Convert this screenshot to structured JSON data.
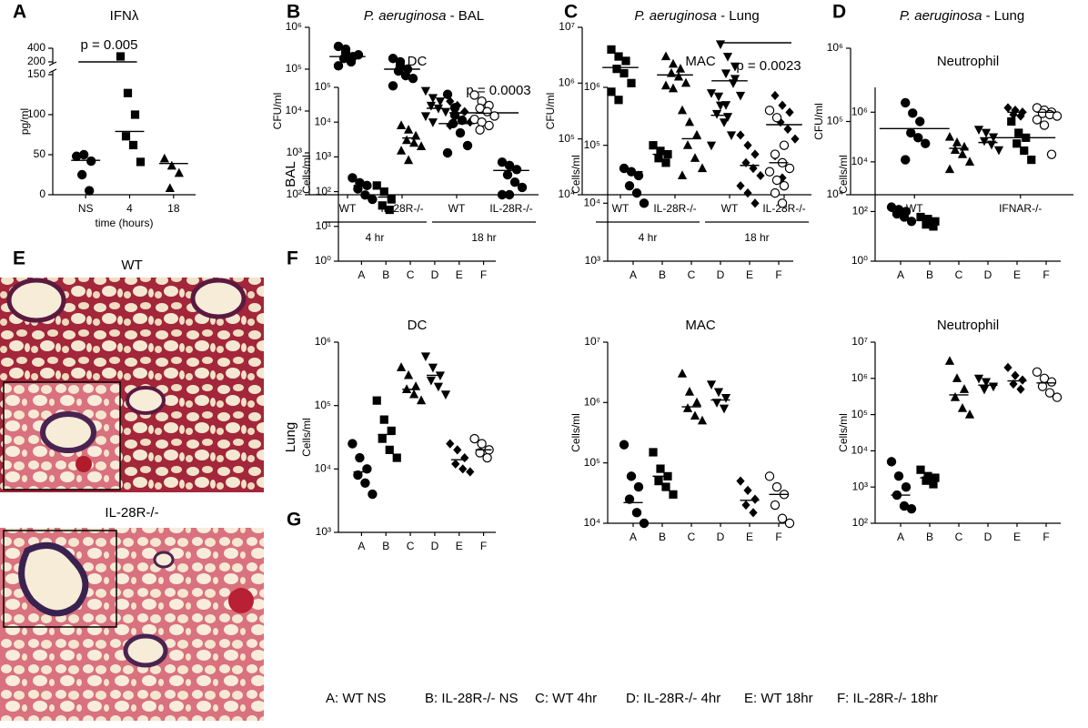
{
  "chart_data": [
    {
      "type": "dot",
      "panel": "A",
      "title": "IFNλ",
      "ylabel": "pg/ml",
      "xlabel": "time (hours)",
      "log": false,
      "categories": [
        "NS",
        "4",
        "18"
      ],
      "markers": [
        "circle",
        "square",
        "triangle"
      ],
      "ylim": [
        0,
        150
      ],
      "yticks": [
        0,
        50,
        100,
        150
      ],
      "ylim_upper": [
        200,
        400
      ],
      "yticks_upper": [
        200,
        400
      ],
      "points": [
        [
          48,
          50,
          42,
          25,
          5
        ],
        [
          280,
          127,
          100,
          73,
          62,
          41
        ],
        [
          45,
          36,
          27,
          8
        ]
      ],
      "medians": [
        43,
        79,
        39
      ],
      "annotations": [
        "p = 0.005"
      ]
    },
    {
      "type": "dot",
      "panel": "B",
      "title_species": "P. aeruginosa",
      "title": "- BAL",
      "ylabel": "CFU/ml",
      "log": true,
      "categories": [
        "WT",
        "IL-28R-/-",
        "WT",
        "IL-28R-/-"
      ],
      "groups": [
        "4 hr",
        "18 hr"
      ],
      "markers": [
        "circle",
        "circle",
        "circle",
        "circle"
      ],
      "ylim": [
        100,
        1000000
      ],
      "yticks": [
        {
          "value": 100,
          "label": "10²"
        },
        {
          "value": 1000,
          "label": "10³"
        },
        {
          "value": 10000,
          "label": "10⁴"
        },
        {
          "value": 100000,
          "label": "10⁵"
        },
        {
          "value": 1000000,
          "label": "10⁶"
        }
      ],
      "points": [
        [
          350000,
          250000,
          200000,
          180000,
          150000,
          220000,
          120000,
          300000
        ],
        [
          180000,
          150000,
          100000,
          90000,
          70000,
          60000,
          40000,
          120000
        ],
        [
          25000,
          12000,
          6000,
          5000,
          3000,
          1500,
          1000,
          8000
        ],
        [
          600,
          500,
          400,
          300,
          200,
          150,
          100,
          100
        ]
      ],
      "medians": [
        200000,
        100000,
        5000,
        380
      ],
      "annotations": [
        "p = 0.0003"
      ]
    },
    {
      "type": "dot",
      "panel": "C",
      "title_species": "P. aeruginosa",
      "title": "- Lung",
      "ylabel": "CFU/ml",
      "log": true,
      "categories": [
        "WT",
        "IL-28R-/-",
        "WT",
        "IL-28R-/-"
      ],
      "groups": [
        "4 hr",
        "18 hr"
      ],
      "markers": [
        "square",
        "triangle",
        "triangle-down",
        "diamond"
      ],
      "ylim": [
        10000,
        10000000
      ],
      "yticks": [
        {
          "value": 10000,
          "label": "10⁴"
        },
        {
          "value": 100000,
          "label": "10⁵"
        },
        {
          "value": 1000000,
          "label": "10⁶"
        },
        {
          "value": 10000000,
          "label": "10⁷"
        }
      ],
      "points": [
        [
          4000000,
          3000000,
          2500000,
          1800000,
          1500000,
          1000000,
          700000,
          500000
        ],
        [
          3000000,
          2200000,
          1800000,
          1500000,
          1300000,
          1000000,
          900000,
          800000
        ],
        [
          5000000,
          3000000,
          2000000,
          1500000,
          1000000,
          600000,
          400000,
          250000,
          1200000
        ],
        [
          600000,
          400000,
          300000,
          200000,
          150000,
          100000,
          50000,
          20000
        ]
      ],
      "medians": [
        1900000,
        1400000,
        1100000,
        180000
      ],
      "annotations": [
        "p = 0.0023"
      ]
    },
    {
      "type": "dot",
      "panel": "D",
      "title_species": "P. aeruginosa",
      "title": "- Lung",
      "ylabel": "CFU/ml",
      "log": true,
      "categories": [
        "WT",
        "IFNAR-/-"
      ],
      "markers": [
        "circle",
        "square"
      ],
      "ylim": [
        10000,
        1000000
      ],
      "yticks": [
        {
          "value": 10000,
          "label": "10⁴"
        },
        {
          "value": 100000,
          "label": "10⁵"
        },
        {
          "value": 1000000,
          "label": "10⁶"
        }
      ],
      "points": [
        [
          180000,
          130000,
          100000,
          70000,
          60000,
          50000,
          30000
        ],
        [
          100000,
          70000,
          60000,
          50000,
          40000,
          30000
        ]
      ],
      "medians": [
        80000,
        60000
      ]
    },
    {
      "type": "dot",
      "panel": "F",
      "row_label": "BAL",
      "title": "DC",
      "ylabel": "Cells/ml",
      "log": true,
      "categories": [
        "A",
        "B",
        "C",
        "D",
        "E",
        "F"
      ],
      "markers": [
        "circle",
        "square",
        "triangle",
        "triangle-down",
        "diamond",
        "open-circle"
      ],
      "ylim": [
        1,
        100000
      ],
      "yticks": [
        {
          "value": 1,
          "label": "10⁰"
        },
        {
          "value": 10,
          "label": "10¹"
        },
        {
          "value": 100,
          "label": "10²"
        },
        {
          "value": 1000,
          "label": "10³"
        },
        {
          "value": 10000,
          "label": "10⁴"
        },
        {
          "value": 100000,
          "label": "10⁵"
        }
      ],
      "points": [
        [
          250,
          180,
          150,
          120,
          80,
          60
        ],
        [
          150,
          100,
          60,
          40,
          30
        ],
        [
          8000,
          6000,
          4000,
          3000,
          2500,
          2000,
          1500,
          800
        ],
        [
          80000,
          50000,
          40000,
          30000,
          25000,
          20000,
          15000,
          10000
        ],
        [
          40000,
          30000,
          20000,
          15000,
          12000,
          10000,
          8000
        ],
        [
          60000,
          40000,
          30000,
          25000,
          20000,
          15000,
          12000,
          10000,
          8000,
          6000
        ]
      ],
      "medians": [
        150,
        70,
        3500,
        25000,
        18000,
        18000
      ]
    },
    {
      "type": "dot",
      "title": "MAC",
      "ylabel": "Cells/ml",
      "log": true,
      "categories": [
        "A",
        "B",
        "C",
        "D",
        "E",
        "F"
      ],
      "markers": [
        "circle",
        "square",
        "triangle",
        "triangle-down",
        "diamond",
        "open-circle"
      ],
      "ylim": [
        1000,
        1000000
      ],
      "yticks": [
        {
          "value": 1000,
          "label": "10³"
        },
        {
          "value": 10000,
          "label": "10⁴"
        },
        {
          "value": 100000,
          "label": "10⁵"
        },
        {
          "value": 1000000,
          "label": "10⁶"
        }
      ],
      "points": [
        [
          40000,
          35000,
          30000,
          20000,
          15000,
          10000
        ],
        [
          100000,
          80000,
          70000,
          60000,
          50000
        ],
        [
          400000,
          250000,
          150000,
          100000,
          60000,
          40000,
          30000
        ],
        [
          800000,
          700000,
          500000,
          350000,
          250000,
          150000,
          100000
        ],
        [
          150000,
          100000,
          70000,
          50000,
          40000,
          30000,
          20000,
          15000,
          10000
        ],
        [
          400000,
          300000,
          100000,
          70000,
          50000,
          40000,
          35000,
          25000,
          20000,
          15000,
          10000
        ]
      ],
      "medians": [
        35000,
        70000,
        130000,
        330000,
        45000,
        50000
      ]
    },
    {
      "type": "dot",
      "title": "Neutrophil",
      "ylabel": "Cells/ml",
      "log": true,
      "categories": [
        "A",
        "B",
        "C",
        "D",
        "E",
        "F"
      ],
      "markers": [
        "circle",
        "square",
        "triangle",
        "triangle-down",
        "diamond",
        "open-circle"
      ],
      "ylim": [
        1,
        10000000
      ],
      "yticks": [
        {
          "value": 1,
          "label": "10⁰"
        },
        {
          "value": 100,
          "label": "10²"
        },
        {
          "value": 10000,
          "label": "10⁴"
        },
        {
          "value": 1000000,
          "label": "10⁶"
        }
      ],
      "points": [
        [
          150,
          120,
          100,
          80,
          60,
          40
        ],
        [
          60,
          50,
          40,
          30,
          25
        ],
        [
          100000,
          60000,
          40000,
          30000,
          20000,
          10000,
          5000
        ],
        [
          200000,
          150000,
          100000,
          70000,
          50000,
          30000
        ],
        [
          1500000,
          1200000,
          1000000,
          800000,
          700000
        ],
        [
          1500000,
          1200000,
          1000000,
          900000,
          800000,
          700000,
          500000,
          300000,
          20000
        ]
      ],
      "medians": [
        100,
        45,
        35000,
        60000,
        1000000,
        1000000
      ]
    },
    {
      "type": "dot",
      "panel": "G",
      "row_label": "Lung",
      "title": "DC",
      "ylabel": "Cells/ml",
      "log": true,
      "categories": [
        "A",
        "B",
        "C",
        "D",
        "E",
        "F"
      ],
      "markers": [
        "circle",
        "square",
        "triangle",
        "triangle-down",
        "diamond",
        "open-circle"
      ],
      "ylim": [
        1000,
        1000000
      ],
      "yticks": [
        {
          "value": 1000,
          "label": "10³"
        },
        {
          "value": 10000,
          "label": "10⁴"
        },
        {
          "value": 100000,
          "label": "10⁵"
        },
        {
          "value": 1000000,
          "label": "10⁶"
        }
      ],
      "points": [
        [
          25000,
          15000,
          10000,
          8000,
          6000,
          4000
        ],
        [
          120000,
          60000,
          40000,
          30000,
          20000,
          15000
        ],
        [
          400000,
          300000,
          200000,
          180000,
          150000,
          120000
        ],
        [
          600000,
          400000,
          300000,
          250000,
          200000,
          150000
        ],
        [
          25000,
          20000,
          15000,
          12000,
          10000,
          9000
        ],
        [
          30000,
          25000,
          20000,
          18000,
          15000
        ]
      ],
      "medians": [
        9000,
        35000,
        180000,
        300000,
        14000,
        20000
      ]
    },
    {
      "type": "dot",
      "title": "MAC",
      "ylabel": "Cells/ml",
      "log": true,
      "categories": [
        "A",
        "B",
        "C",
        "D",
        "E",
        "F"
      ],
      "markers": [
        "circle",
        "square",
        "triangle",
        "triangle-down",
        "diamond",
        "open-circle"
      ],
      "ylim": [
        10000,
        10000000
      ],
      "yticks": [
        {
          "value": 10000,
          "label": "10⁴"
        },
        {
          "value": 100000,
          "label": "10⁵"
        },
        {
          "value": 1000000,
          "label": "10⁶"
        },
        {
          "value": 10000000,
          "label": "10⁷"
        }
      ],
      "points": [
        [
          200000,
          60000,
          40000,
          25000,
          15000,
          10000
        ],
        [
          150000,
          80000,
          60000,
          50000,
          40000,
          30000
        ],
        [
          3000000,
          1500000,
          1000000,
          800000,
          600000,
          500000
        ],
        [
          2000000,
          1500000,
          1200000,
          1000000,
          800000
        ],
        [
          50000,
          35000,
          25000,
          20000,
          15000
        ],
        [
          60000,
          40000,
          30000,
          20000,
          12000,
          10000
        ]
      ],
      "medians": [
        22000,
        60000,
        850000,
        1100000,
        24000,
        30000
      ]
    },
    {
      "type": "dot",
      "title": "Neutrophil",
      "ylabel": "Cells/ml",
      "log": true,
      "categories": [
        "A",
        "B",
        "C",
        "D",
        "E",
        "F"
      ],
      "markers": [
        "circle",
        "square",
        "triangle",
        "triangle-down",
        "diamond",
        "open-circle"
      ],
      "ylim": [
        100,
        10000000
      ],
      "yticks": [
        {
          "value": 100,
          "label": "10²"
        },
        {
          "value": 1000,
          "label": "10³"
        },
        {
          "value": 10000,
          "label": "10⁴"
        },
        {
          "value": 100000,
          "label": "10⁵"
        },
        {
          "value": 1000000,
          "label": "10⁶"
        },
        {
          "value": 10000000,
          "label": "10⁷"
        }
      ],
      "points": [
        [
          5000,
          2000,
          1000,
          600,
          300,
          250
        ],
        [
          3000,
          2000,
          1800,
          1500,
          1200
        ],
        [
          3000000,
          1000000,
          500000,
          300000,
          150000,
          100000
        ],
        [
          1000000,
          800000,
          600000,
          500000
        ],
        [
          2000000,
          1200000,
          900000,
          700000,
          500000
        ],
        [
          1500000,
          1000000,
          800000,
          600000,
          400000,
          300000
        ]
      ],
      "medians": [
        600,
        1800,
        350000,
        650000,
        850000,
        750000
      ]
    }
  ],
  "panel_e": {
    "panel": "E",
    "labels": [
      "WT",
      "IL-28R-/-"
    ]
  },
  "key": [
    "A: WT NS",
    "B: IL-28R-/- NS",
    "C: WT 4hr",
    "D: IL-28R-/- 4hr",
    "E: WT 18hr",
    "F: IL-28R-/- 18hr"
  ]
}
